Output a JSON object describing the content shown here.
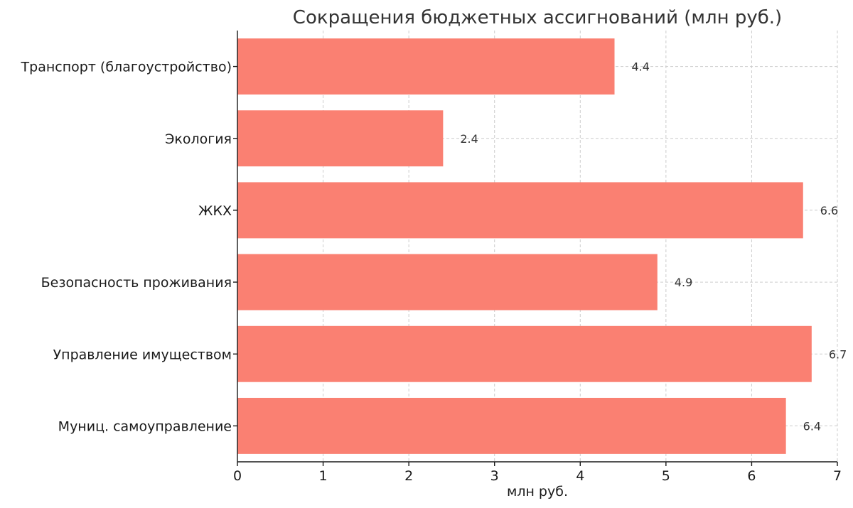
{
  "chart_data": {
    "type": "bar",
    "orientation": "horizontal",
    "title": "Сокращения бюджетных ассигнований (млн руб.)",
    "xlabel": "млн руб.",
    "ylabel": "",
    "xlim": [
      0,
      7
    ],
    "x_ticks": [
      "0",
      "1",
      "2",
      "3",
      "4",
      "5",
      "6",
      "7"
    ],
    "categories": [
      "Транспорт (благоустройство)",
      "Экология",
      "ЖКХ",
      "Безопасность проживания",
      "Управление имуществом",
      "Муниц. самоуправление"
    ],
    "values": [
      4.4,
      2.4,
      6.6,
      4.9,
      6.7,
      6.4
    ],
    "value_labels": [
      "4.4",
      "2.4",
      "6.6",
      "4.9",
      "6.7",
      "6.4"
    ],
    "bar_color": "#fa8072",
    "grid": true,
    "legend": "none"
  }
}
